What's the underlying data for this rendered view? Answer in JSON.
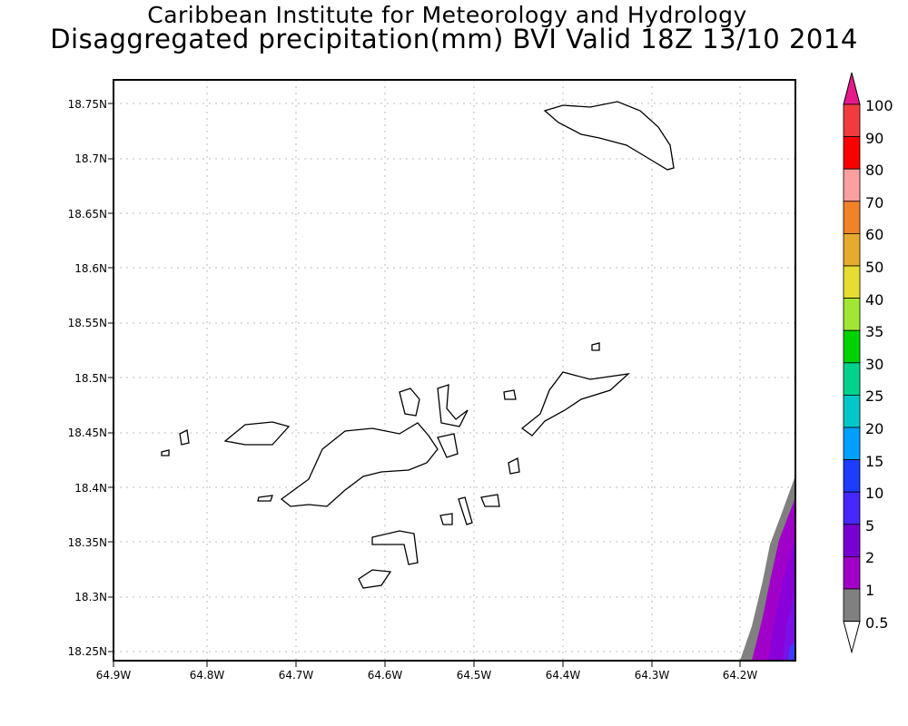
{
  "title": {
    "line1": "Caribbean Institute for Meteorology and Hydrology",
    "line2": "Disaggregated precipitation(mm) BVI Valid 18Z 13/10 2014"
  },
  "map": {
    "lon_ticks": [
      "64.9W",
      "64.8W",
      "64.7W",
      "64.6W",
      "64.5W",
      "64.4W",
      "64.3W",
      "64.2W"
    ],
    "lat_ticks": [
      "18.75N",
      "18.7N",
      "18.65N",
      "18.6N",
      "18.55N",
      "18.5N",
      "18.45N",
      "18.4N",
      "18.35N",
      "18.3N",
      "18.25N"
    ],
    "lon_range": [
      -64.9,
      -64.14
    ],
    "lat_range": [
      18.24,
      18.77
    ]
  },
  "colorbar": {
    "labels": [
      "100",
      "90",
      "80",
      "70",
      "60",
      "50",
      "40",
      "35",
      "30",
      "25",
      "20",
      "15",
      "10",
      "5",
      "2",
      "1",
      "0.5"
    ],
    "top_arrow_color": "#e6198c",
    "bottom_arrow_color": "#ffffff",
    "segment_colors": [
      "#f03c3c",
      "#fa0000",
      "#fba0a0",
      "#f08228",
      "#e6aa2d",
      "#e6dc32",
      "#a0e632",
      "#00d200",
      "#00d28c",
      "#00c8c8",
      "#00a0ff",
      "#1e3cff",
      "#4628ff",
      "#7800d2",
      "#a000c8",
      "#808080"
    ]
  }
}
